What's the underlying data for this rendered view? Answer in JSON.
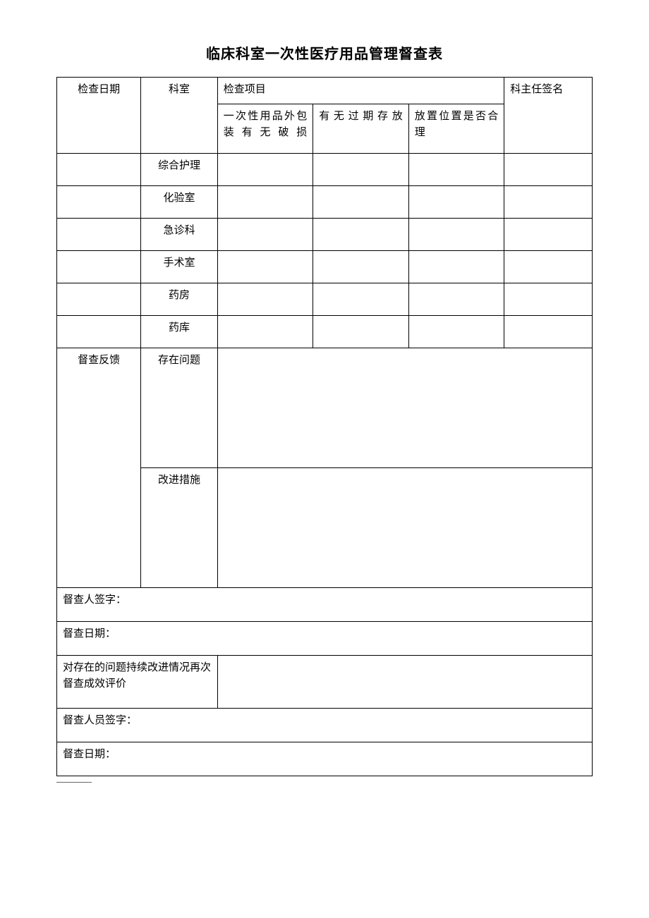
{
  "document": {
    "title": "临床科室一次性医疗用品管理督查表",
    "colors": {
      "background": "#ffffff",
      "border": "#000000",
      "text": "#000000"
    },
    "typography": {
      "title_fontsize": 20,
      "body_fontsize": 15,
      "font_family": "SimSun"
    },
    "columns": {
      "date_header": "检查日期",
      "dept_header": "科室",
      "check_items_header": "检查项目",
      "signature_header": "科主任签名",
      "check_item_1": "一次性用品外包装有无破损",
      "check_item_2": "有无过期存放",
      "check_item_3": "放置位置是否合理"
    },
    "departments": [
      "综合护理",
      "化验室",
      "急诊科",
      "手术室",
      "药房",
      "药库"
    ],
    "feedback": {
      "label": "督查反馈",
      "problems_label": "存在问题",
      "improvements_label": "改进措施"
    },
    "signatures": {
      "inspector_sig": "督查人签字：",
      "inspection_date": "督查日期：",
      "continuous_improvement": "对存在的问题持续改进情况再次督查成效评价",
      "inspector_sig2": "督查人员签字：",
      "inspection_date2": "督查日期："
    }
  }
}
